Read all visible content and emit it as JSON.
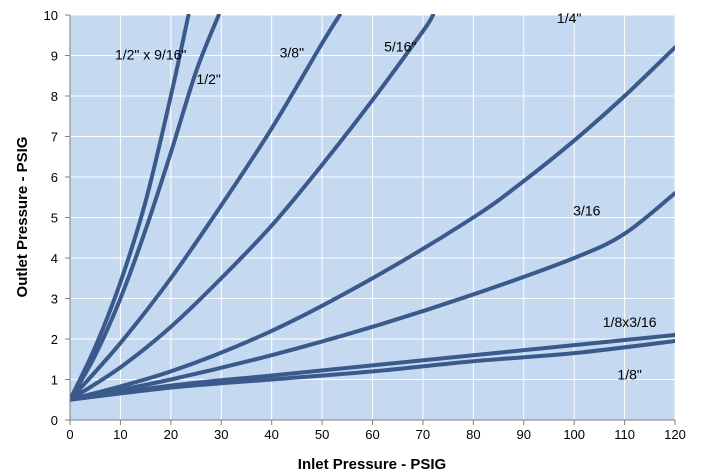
{
  "chart_data": {
    "type": "line",
    "title": "",
    "xlabel": "Inlet Pressure - PSIG",
    "ylabel": "Outlet Pressure - PSIG",
    "xlim": [
      0,
      120
    ],
    "ylim": [
      0,
      10
    ],
    "xticks": [
      "0",
      "10",
      "20",
      "30",
      "40",
      "50",
      "60",
      "70",
      "80",
      "90",
      "100",
      "110",
      "120"
    ],
    "yticks": [
      "0",
      "1",
      "2",
      "3",
      "4",
      "5",
      "6",
      "7",
      "8",
      "9",
      "10"
    ],
    "grid": true,
    "legend": "none",
    "colors": {
      "plot_bg": "#c5d9f1",
      "grid": "#ffffff",
      "line": "#3a5a8c",
      "axis": "#7f7f7f"
    },
    "series": [
      {
        "name": "1/2\" x 9/16\"",
        "label_at": [
          16,
          8.9
        ],
        "points": [
          [
            0,
            0.5
          ],
          [
            5,
            1.8
          ],
          [
            10,
            3.4
          ],
          [
            15,
            5.4
          ],
          [
            20,
            8.0
          ],
          [
            23.5,
            10
          ]
        ]
      },
      {
        "name": "1/2\"",
        "label_at": [
          27.5,
          8.3
        ],
        "points": [
          [
            0,
            0.5
          ],
          [
            5,
            1.6
          ],
          [
            10,
            3.0
          ],
          [
            15,
            4.7
          ],
          [
            20,
            6.6
          ],
          [
            25,
            8.6
          ],
          [
            29.5,
            10
          ]
        ]
      },
      {
        "name": "3/8\"",
        "label_at": [
          44,
          8.95
        ],
        "points": [
          [
            0,
            0.5
          ],
          [
            10,
            1.9
          ],
          [
            20,
            3.5
          ],
          [
            30,
            5.3
          ],
          [
            40,
            7.2
          ],
          [
            50,
            9.3
          ],
          [
            53.5,
            10
          ]
        ]
      },
      {
        "name": "5/16\"",
        "label_at": [
          65.5,
          9.1
        ],
        "points": [
          [
            0,
            0.5
          ],
          [
            10,
            1.3
          ],
          [
            20,
            2.3
          ],
          [
            30,
            3.5
          ],
          [
            40,
            4.8
          ],
          [
            50,
            6.3
          ],
          [
            60,
            7.9
          ],
          [
            70,
            9.6
          ],
          [
            72,
            10
          ]
        ]
      },
      {
        "name": "1/4\"",
        "label_at": [
          99,
          9.8
        ],
        "points": [
          [
            0,
            0.5
          ],
          [
            20,
            1.2
          ],
          [
            40,
            2.2
          ],
          [
            60,
            3.5
          ],
          [
            80,
            5.0
          ],
          [
            90,
            5.9
          ],
          [
            100,
            6.9
          ],
          [
            110,
            8.0
          ],
          [
            120,
            9.2
          ]
        ]
      },
      {
        "name": "3/16",
        "label_at": [
          102.5,
          5.05
        ],
        "points": [
          [
            0,
            0.5
          ],
          [
            20,
            1.0
          ],
          [
            40,
            1.6
          ],
          [
            60,
            2.3
          ],
          [
            80,
            3.1
          ],
          [
            100,
            4.0
          ],
          [
            110,
            4.6
          ],
          [
            120,
            5.6
          ]
        ]
      },
      {
        "name": "1/8x3/16",
        "label_at": [
          111,
          2.3
        ],
        "points": [
          [
            0,
            0.5
          ],
          [
            20,
            0.85
          ],
          [
            40,
            1.1
          ],
          [
            60,
            1.35
          ],
          [
            80,
            1.6
          ],
          [
            100,
            1.85
          ],
          [
            120,
            2.1
          ]
        ]
      },
      {
        "name": "1/8\"",
        "label_at": [
          111,
          1.0
        ],
        "points": [
          [
            0,
            0.5
          ],
          [
            20,
            0.8
          ],
          [
            40,
            1.0
          ],
          [
            60,
            1.2
          ],
          [
            80,
            1.45
          ],
          [
            100,
            1.65
          ],
          [
            120,
            1.95
          ]
        ]
      }
    ]
  }
}
